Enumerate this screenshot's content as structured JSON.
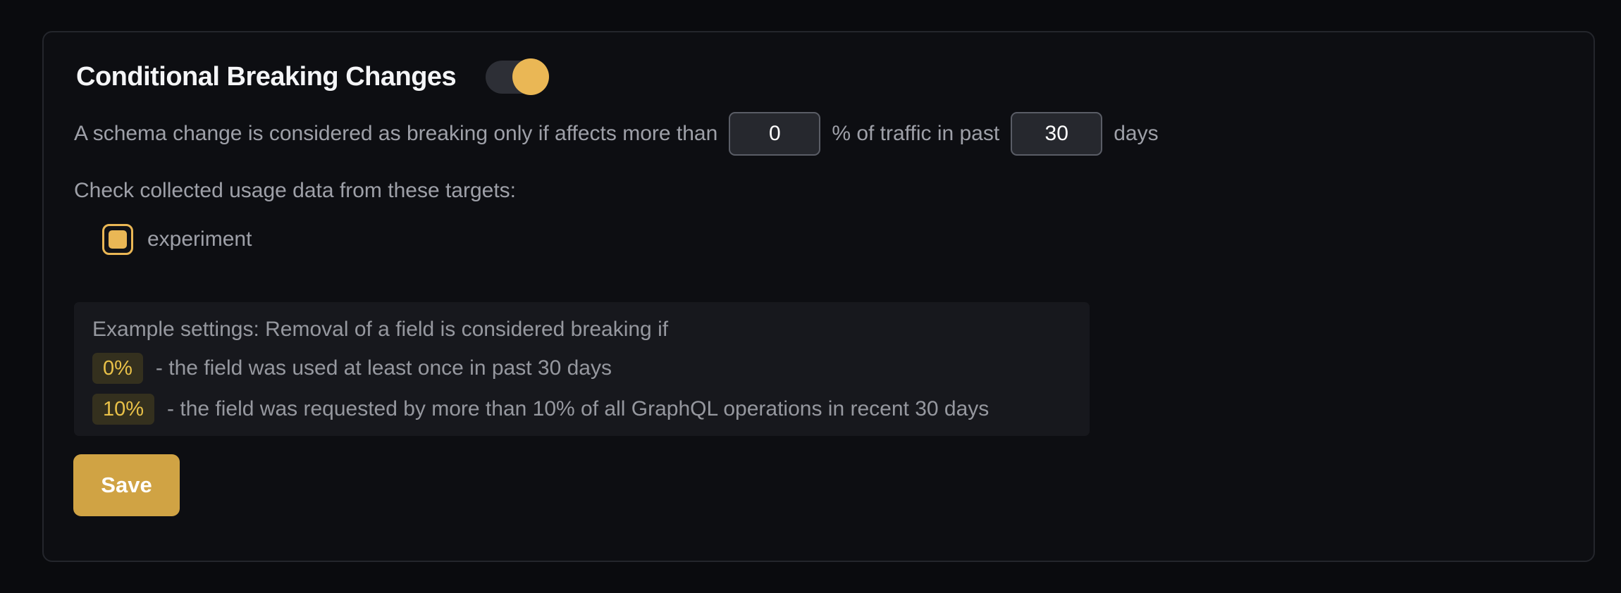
{
  "card": {
    "title": "Conditional Breaking Changes",
    "toggle": {
      "state": "on"
    },
    "threshold_sentence": {
      "part1": "A schema change is considered as breaking only if affects more than",
      "percentage_value": "0",
      "part2": "% of traffic in past",
      "days_value": "30",
      "part3": "days"
    },
    "targets": {
      "label": "Check collected usage data from these targets:",
      "items": [
        {
          "name": "experiment",
          "checked": true
        }
      ]
    },
    "example": {
      "intro": "Example settings: Removal of a field is considered breaking if",
      "rules": [
        {
          "badge": "0%",
          "description": "- the field was used at least once in past 30 days"
        },
        {
          "badge": "10%",
          "description": "- the field was requested by more than 10% of all GraphQL operations in recent 30 days"
        }
      ]
    },
    "save_label": "Save"
  },
  "colors": {
    "accent": "#eab755",
    "save_button": "#d0a344",
    "badge_text": "#e9c148",
    "badge_bg": "#34301e",
    "body_text": "#9ea0a8",
    "card_bg": "#0d0e12",
    "page_bg": "#0a0b0e",
    "example_box_bg": "#17181d",
    "input_bg": "#26282e",
    "input_border": "#5a5d66",
    "toggle_track": "#2d2f36"
  }
}
